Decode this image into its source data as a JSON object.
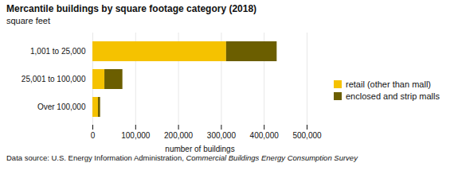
{
  "chart_data": {
    "type": "bar",
    "orientation": "horizontal",
    "stacked": true,
    "title": "Mercantile buildings by square footage category (2018)",
    "subtitle": "square feet",
    "categories": [
      "1,001 to 25,000",
      "25,001 to 100,000",
      "Over 100,000"
    ],
    "series": [
      {
        "name": "retail (other than mall)",
        "color": "#F5C200",
        "values": [
          312000,
          28000,
          13000
        ]
      },
      {
        "name": "enclosed and strip malls",
        "color": "#6B5E00",
        "values": [
          118000,
          42000,
          5000
        ]
      }
    ],
    "xlabel": "number of buildings",
    "xlim": [
      0,
      500000
    ],
    "xticks": [
      0,
      {
        "value": 100000,
        "label": "100,000"
      },
      {
        "value": 200000,
        "label": "200,000"
      },
      {
        "value": 300000,
        "label": "300,000"
      },
      {
        "value": 400000,
        "label": "400,000"
      },
      {
        "value": 500000,
        "label": "500,000"
      }
    ],
    "grid": true,
    "legend": "right",
    "footnote": "Data source: U.S. Energy Information Administration, ",
    "footnote_italic": "Commercial Buildings Energy Consumption Survey"
  }
}
